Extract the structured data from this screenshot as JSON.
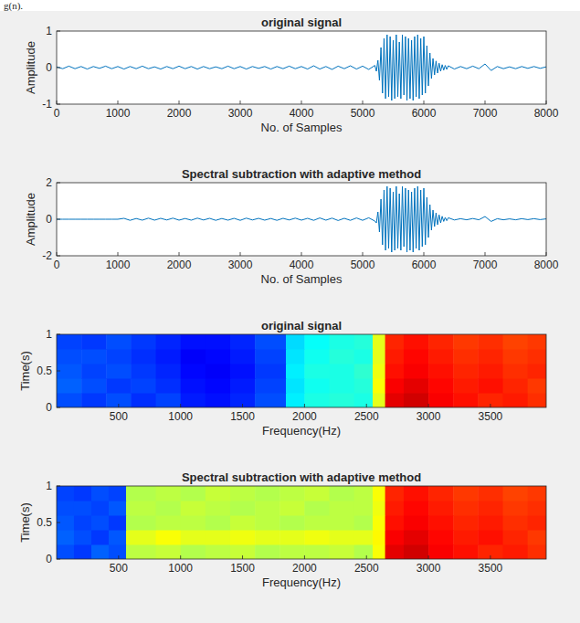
{
  "fragment_text": "g(n).",
  "chart_data": [
    {
      "type": "line",
      "title": "original signal",
      "xlabel": "No. of Samples",
      "ylabel": "Amplitude",
      "color": "#0072bd",
      "grid": false,
      "xlim": [
        0,
        8000
      ],
      "ylim": [
        -1,
        1
      ],
      "xticks": [
        0,
        1000,
        2000,
        3000,
        4000,
        5000,
        6000,
        7000,
        8000
      ],
      "yticks": [
        -1,
        0,
        1
      ],
      "x": [
        0,
        100,
        200,
        300,
        400,
        500,
        600,
        700,
        800,
        900,
        1000,
        1100,
        1200,
        1300,
        1400,
        1500,
        1600,
        1700,
        1800,
        1900,
        2000,
        2100,
        2200,
        2300,
        2400,
        2500,
        2600,
        2700,
        2800,
        2900,
        3000,
        3100,
        3200,
        3300,
        3400,
        3500,
        3600,
        3700,
        3800,
        3900,
        4000,
        4100,
        4200,
        4300,
        4400,
        4500,
        4600,
        4700,
        4800,
        4900,
        5000,
        5100,
        5200,
        5225,
        5250,
        5275,
        5300,
        5325,
        5350,
        5375,
        5400,
        5425,
        5450,
        5475,
        5500,
        5525,
        5550,
        5575,
        5600,
        5625,
        5650,
        5675,
        5700,
        5725,
        5750,
        5775,
        5800,
        5825,
        5850,
        5875,
        5900,
        5925,
        5950,
        5975,
        6000,
        6025,
        6050,
        6075,
        6100,
        6125,
        6150,
        6175,
        6200,
        6225,
        6250,
        6275,
        6300,
        6325,
        6350,
        6375,
        6400,
        6500,
        6600,
        6700,
        6800,
        6900,
        7000,
        7100,
        7200,
        7300,
        7400,
        7500,
        7600,
        7700,
        7800,
        7900,
        8000
      ],
      "values": [
        0.02,
        -0.03,
        0.04,
        -0.03,
        0.03,
        -0.04,
        0.03,
        -0.02,
        0.04,
        -0.03,
        0.03,
        -0.04,
        0.03,
        -0.03,
        0.04,
        -0.03,
        0.02,
        -0.04,
        0.03,
        -0.03,
        0.04,
        -0.03,
        0.03,
        -0.04,
        0.03,
        -0.03,
        0.02,
        -0.03,
        0.04,
        -0.03,
        0.03,
        -0.04,
        0.03,
        -0.02,
        0.03,
        -0.04,
        0.03,
        -0.03,
        0.04,
        -0.03,
        0.03,
        -0.04,
        0.05,
        -0.04,
        0.03,
        -0.05,
        0.04,
        -0.03,
        0.05,
        -0.04,
        0.04,
        -0.05,
        0.06,
        -0.1,
        0.2,
        -0.35,
        0.55,
        -0.7,
        0.8,
        -0.85,
        0.9,
        -0.8,
        0.85,
        -0.9,
        0.75,
        -0.85,
        0.9,
        -0.8,
        0.7,
        -0.85,
        0.9,
        -0.75,
        0.85,
        -0.9,
        0.8,
        -0.85,
        0.75,
        -0.9,
        0.85,
        -0.8,
        0.9,
        -0.85,
        0.8,
        -0.75,
        0.85,
        -0.7,
        0.6,
        -0.5,
        0.4,
        -0.3,
        0.25,
        -0.2,
        0.18,
        -0.15,
        0.12,
        -0.1,
        0.08,
        -0.07,
        0.06,
        -0.05,
        0.05,
        -0.04,
        0.03,
        -0.03,
        0.04,
        -0.03,
        0.1,
        -0.08,
        0.03,
        -0.03,
        0.02,
        -0.03,
        0.03,
        -0.02,
        0.03,
        -0.02,
        0.02
      ]
    },
    {
      "type": "line",
      "title": "Spectral subtraction with adaptive method",
      "xlabel": "No. of Samples",
      "ylabel": "Amplitude",
      "color": "#0072bd",
      "grid": false,
      "xlim": [
        0,
        8000
      ],
      "ylim": [
        -2,
        2
      ],
      "xticks": [
        0,
        1000,
        2000,
        3000,
        4000,
        5000,
        6000,
        7000,
        8000
      ],
      "yticks": [
        -2,
        0,
        2
      ],
      "x": [
        0,
        100,
        200,
        300,
        400,
        500,
        600,
        700,
        800,
        900,
        1000,
        1100,
        1200,
        1300,
        1400,
        1500,
        1600,
        1700,
        1800,
        1900,
        2000,
        2100,
        2200,
        2300,
        2400,
        2500,
        2600,
        2700,
        2800,
        2900,
        3000,
        3100,
        3200,
        3300,
        3400,
        3500,
        3600,
        3700,
        3800,
        3900,
        4000,
        4100,
        4200,
        4300,
        4400,
        4500,
        4600,
        4700,
        4800,
        4900,
        5000,
        5100,
        5200,
        5225,
        5250,
        5275,
        5300,
        5325,
        5350,
        5375,
        5400,
        5425,
        5450,
        5475,
        5500,
        5525,
        5550,
        5575,
        5600,
        5625,
        5650,
        5675,
        5700,
        5725,
        5750,
        5775,
        5800,
        5825,
        5850,
        5875,
        5900,
        5925,
        5950,
        5975,
        6000,
        6025,
        6050,
        6075,
        6100,
        6125,
        6150,
        6175,
        6200,
        6225,
        6250,
        6275,
        6300,
        6325,
        6350,
        6375,
        6400,
        6500,
        6600,
        6700,
        6800,
        6900,
        7000,
        7100,
        7200,
        7300,
        7400,
        7500,
        7600,
        7700,
        7800,
        7900,
        8000
      ],
      "values": [
        0,
        0,
        0,
        0,
        0,
        0,
        0,
        0,
        0,
        0,
        0,
        0.05,
        -0.06,
        0.04,
        -0.05,
        0.06,
        -0.05,
        0.05,
        -0.04,
        0.06,
        -0.05,
        0.04,
        -0.05,
        0.06,
        -0.04,
        0.05,
        -0.06,
        0.04,
        -0.05,
        0.05,
        -0.06,
        0.06,
        -0.04,
        0.05,
        -0.05,
        0.04,
        -0.06,
        0.05,
        -0.04,
        0.06,
        -0.05,
        0.05,
        -0.06,
        0.07,
        -0.05,
        0.06,
        -0.07,
        0.05,
        -0.06,
        0.07,
        -0.06,
        0.08,
        -0.1,
        -0.2,
        0.4,
        -0.7,
        1.1,
        -1.4,
        1.6,
        -1.7,
        1.8,
        -1.6,
        1.7,
        -1.8,
        1.5,
        -1.7,
        1.8,
        -1.6,
        1.4,
        -1.7,
        1.8,
        -1.5,
        1.7,
        -1.8,
        1.6,
        -1.7,
        1.5,
        -1.8,
        1.7,
        -1.6,
        1.8,
        -1.7,
        1.6,
        -1.5,
        1.7,
        -1.4,
        1.2,
        -1.0,
        0.8,
        -0.6,
        0.5,
        -0.4,
        0.35,
        -0.3,
        0.24,
        -0.2,
        0.16,
        -0.12,
        0.1,
        -0.08,
        0.08,
        -0.04,
        0.03,
        -0.03,
        0.04,
        -0.03,
        0.15,
        -0.12,
        0.03,
        -0.03,
        0.02,
        -0.03,
        0.03,
        -0.02,
        0.03,
        -0.02,
        0.02
      ]
    },
    {
      "type": "heatmap",
      "title": "original signal",
      "xlabel": "Frequency(Hz)",
      "ylabel": "Time(s)",
      "grid": false,
      "xlim": [
        0,
        3950
      ],
      "ylim": [
        0,
        1
      ],
      "xticks": [
        500,
        1000,
        1500,
        2000,
        2500,
        3000,
        3500
      ],
      "yticks": [
        0,
        0.5,
        1
      ],
      "x_edges": [
        0,
        200,
        400,
        600,
        800,
        1000,
        1200,
        1400,
        1600,
        1850,
        2000,
        2200,
        2400,
        2550,
        2650,
        2800,
        3000,
        3200,
        3400,
        3600,
        3800,
        3950
      ],
      "y_edges": [
        0,
        0.2,
        0.4,
        0.6,
        0.8,
        1
      ],
      "zlim": [
        0,
        1
      ],
      "cells": [
        [
          0.2,
          0.18,
          0.2,
          0.17,
          0.19,
          0.15,
          0.14,
          0.16,
          0.2,
          0.36,
          0.4,
          0.41,
          0.4,
          0.6,
          0.9,
          0.92,
          0.88,
          0.86,
          0.84,
          0.85,
          0.83
        ],
        [
          0.22,
          0.2,
          0.18,
          0.19,
          0.17,
          0.14,
          0.13,
          0.15,
          0.19,
          0.35,
          0.39,
          0.4,
          0.41,
          0.62,
          0.88,
          0.9,
          0.87,
          0.85,
          0.86,
          0.84,
          0.82
        ],
        [
          0.21,
          0.19,
          0.2,
          0.18,
          0.16,
          0.13,
          0.12,
          0.14,
          0.18,
          0.36,
          0.4,
          0.4,
          0.42,
          0.61,
          0.86,
          0.88,
          0.86,
          0.84,
          0.85,
          0.83,
          0.84
        ],
        [
          0.2,
          0.2,
          0.19,
          0.17,
          0.15,
          0.12,
          0.13,
          0.15,
          0.19,
          0.35,
          0.39,
          0.41,
          0.4,
          0.6,
          0.85,
          0.87,
          0.85,
          0.83,
          0.84,
          0.82,
          0.83
        ],
        [
          0.19,
          0.18,
          0.2,
          0.18,
          0.16,
          0.14,
          0.14,
          0.16,
          0.2,
          0.34,
          0.38,
          0.4,
          0.41,
          0.6,
          0.84,
          0.86,
          0.84,
          0.82,
          0.83,
          0.81,
          0.82
        ]
      ]
    },
    {
      "type": "heatmap",
      "title": "Spectral subtraction with adaptive method",
      "xlabel": "Frequency(Hz)",
      "ylabel": "Time(s)",
      "grid": false,
      "xlim": [
        0,
        3950
      ],
      "ylim": [
        0,
        1
      ],
      "xticks": [
        500,
        1000,
        1500,
        2000,
        2500,
        3000,
        3500
      ],
      "yticks": [
        0,
        0.5,
        1
      ],
      "x_edges": [
        0,
        140,
        280,
        420,
        560,
        800,
        1000,
        1200,
        1400,
        1600,
        1800,
        2000,
        2200,
        2400,
        2550,
        2650,
        2800,
        3000,
        3200,
        3400,
        3600,
        3800,
        3950
      ],
      "y_edges": [
        0,
        0.2,
        0.4,
        0.6,
        0.8,
        1
      ],
      "zlim": [
        0,
        1
      ],
      "cells": [
        [
          0.2,
          0.18,
          0.22,
          0.2,
          0.56,
          0.57,
          0.55,
          0.56,
          0.57,
          0.55,
          0.56,
          0.56,
          0.57,
          0.55,
          0.62,
          0.9,
          0.92,
          0.88,
          0.86,
          0.84,
          0.85,
          0.83
        ],
        [
          0.22,
          0.2,
          0.18,
          0.21,
          0.6,
          0.62,
          0.6,
          0.6,
          0.61,
          0.6,
          0.6,
          0.61,
          0.6,
          0.6,
          0.63,
          0.88,
          0.9,
          0.87,
          0.85,
          0.86,
          0.84,
          0.82
        ],
        [
          0.21,
          0.19,
          0.2,
          0.18,
          0.55,
          0.56,
          0.56,
          0.55,
          0.57,
          0.56,
          0.55,
          0.56,
          0.56,
          0.55,
          0.62,
          0.86,
          0.88,
          0.86,
          0.84,
          0.85,
          0.83,
          0.84
        ],
        [
          0.2,
          0.2,
          0.19,
          0.21,
          0.56,
          0.55,
          0.57,
          0.56,
          0.55,
          0.56,
          0.57,
          0.55,
          0.56,
          0.56,
          0.61,
          0.85,
          0.87,
          0.85,
          0.83,
          0.84,
          0.82,
          0.83
        ],
        [
          0.19,
          0.18,
          0.2,
          0.19,
          0.55,
          0.56,
          0.55,
          0.57,
          0.56,
          0.55,
          0.56,
          0.57,
          0.55,
          0.56,
          0.62,
          0.84,
          0.86,
          0.84,
          0.82,
          0.83,
          0.81,
          0.82
        ]
      ]
    }
  ]
}
